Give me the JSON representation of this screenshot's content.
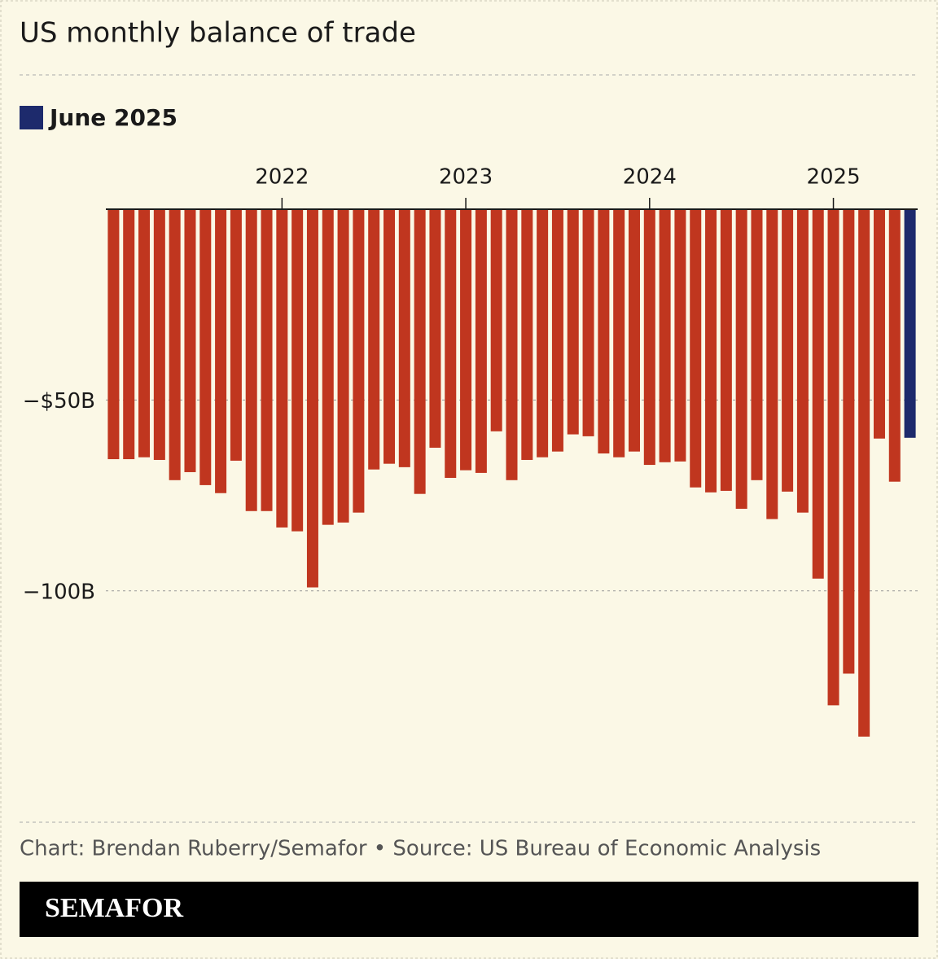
{
  "chart_data": {
    "type": "bar",
    "title": "US monthly balance of trade",
    "legend": [
      {
        "name": "June 2025",
        "color": "#1d2a6c"
      }
    ],
    "categories": [
      null,
      null,
      null,
      null,
      null,
      null,
      null,
      null,
      null,
      null,
      null,
      "2022",
      null,
      null,
      null,
      null,
      null,
      null,
      null,
      null,
      null,
      null,
      null,
      "2023",
      null,
      null,
      null,
      null,
      null,
      null,
      null,
      null,
      null,
      null,
      null,
      "2024",
      null,
      null,
      null,
      null,
      null,
      null,
      null,
      null,
      null,
      null,
      null,
      "2025",
      null,
      null,
      null,
      null,
      null
    ],
    "values": [
      -65.5,
      -65.5,
      -65,
      -65.7,
      -71,
      -68.9,
      -72.3,
      -74.4,
      -65.9,
      -79.1,
      -79.1,
      -83.4,
      -84.4,
      -99.1,
      -82.7,
      -82.1,
      -79.5,
      -68.2,
      -66.7,
      -67.6,
      -74.6,
      -62.5,
      -70.4,
      -68.4,
      -69.1,
      -58.2,
      -71,
      -65.7,
      -65,
      -63.5,
      -59,
      -59.5,
      -64,
      -65,
      -63.5,
      -67,
      -66.3,
      -66.1,
      -72.9,
      -74.2,
      -73.8,
      -78.5,
      -71,
      -81.2,
      -74,
      -79.5,
      -96.8,
      -130,
      -121.7,
      -138.2,
      -60.1,
      -71.4,
      -59.9
    ],
    "colors": [
      "#c0361f",
      "#c0361f",
      "#c0361f",
      "#c0361f",
      "#c0361f",
      "#c0361f",
      "#c0361f",
      "#c0361f",
      "#c0361f",
      "#c0361f",
      "#c0361f",
      "#c0361f",
      "#c0361f",
      "#c0361f",
      "#c0361f",
      "#c0361f",
      "#c0361f",
      "#c0361f",
      "#c0361f",
      "#c0361f",
      "#c0361f",
      "#c0361f",
      "#c0361f",
      "#c0361f",
      "#c0361f",
      "#c0361f",
      "#c0361f",
      "#c0361f",
      "#c0361f",
      "#c0361f",
      "#c0361f",
      "#c0361f",
      "#c0361f",
      "#c0361f",
      "#c0361f",
      "#c0361f",
      "#c0361f",
      "#c0361f",
      "#c0361f",
      "#c0361f",
      "#c0361f",
      "#c0361f",
      "#c0361f",
      "#c0361f",
      "#c0361f",
      "#c0361f",
      "#c0361f",
      "#c0361f",
      "#c0361f",
      "#c0361f",
      "#c0361f",
      "#c0361f",
      "#1d2a6c"
    ],
    "ylim": [
      -160,
      0
    ],
    "yticks": [
      {
        "value": -100,
        "label": "−100B"
      },
      {
        "value": -50,
        "label": "−$50B"
      }
    ],
    "grid": true
  },
  "footer": {
    "source": "Chart: Brendan Ruberry/Semafor • Source: US Bureau of Economic Analysis",
    "brand": "SEMAFOR"
  }
}
